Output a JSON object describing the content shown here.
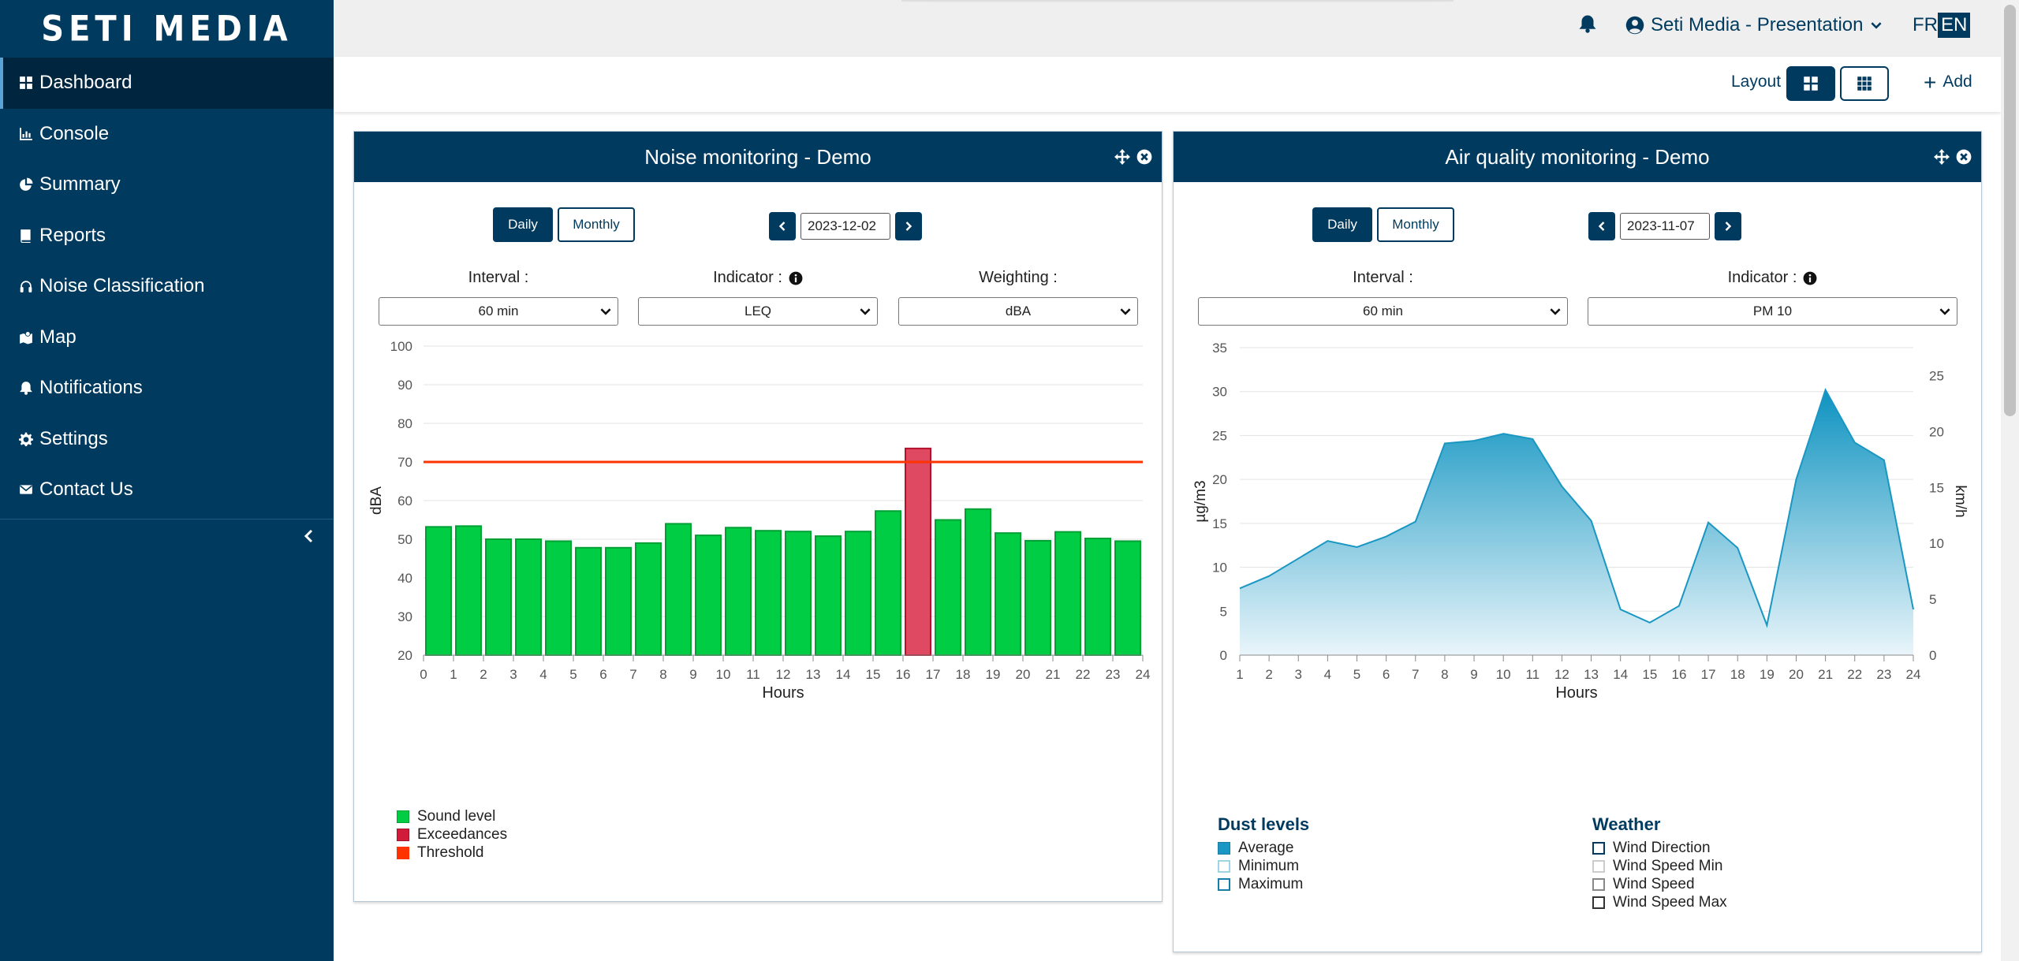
{
  "app": {
    "brand": "SETI MEDIA"
  },
  "sidebar": {
    "items": [
      {
        "label": "Dashboard",
        "icon": "dashboard-icon",
        "active": true
      },
      {
        "label": "Console",
        "icon": "chart-icon"
      },
      {
        "label": "Summary",
        "icon": "pie-icon"
      },
      {
        "label": "Reports",
        "icon": "book-icon"
      },
      {
        "label": "Noise Classification",
        "icon": "headphones-icon"
      },
      {
        "label": "Map",
        "icon": "map-icon"
      },
      {
        "label": "Notifications",
        "icon": "bell-icon"
      },
      {
        "label": "Settings",
        "icon": "gear-icon"
      },
      {
        "label": "Contact Us",
        "icon": "envelope-icon"
      }
    ]
  },
  "header": {
    "user": "Seti Media - Presentation",
    "lang_fr": "FR",
    "lang_en": "EN"
  },
  "toolbar": {
    "layout_label": "Layout",
    "add_label": "Add"
  },
  "noise": {
    "title": "Noise monitoring - Demo",
    "daily": "Daily",
    "monthly": "Monthly",
    "date": "2023-12-02",
    "interval_label": "Interval :",
    "interval_value": "60 min",
    "indicator_label": "Indicator :",
    "indicator_value": "LEQ",
    "weighting_label": "Weighting :",
    "weighting_value": "dBA",
    "legend": {
      "sound": "Sound level",
      "exceed": "Exceedances",
      "threshold": "Threshold"
    }
  },
  "air": {
    "title": "Air quality monitoring - Demo",
    "daily": "Daily",
    "monthly": "Monthly",
    "date": "2023-11-07",
    "interval_label": "Interval :",
    "interval_value": "60 min",
    "indicator_label": "Indicator :",
    "indicator_value": "PM 10",
    "legend": {
      "dust_title": "Dust levels",
      "average": "Average",
      "minimum": "Minimum",
      "maximum": "Maximum",
      "weather_title": "Weather",
      "wind_dir": "Wind Direction",
      "wind_min": "Wind Speed Min",
      "wind_speed": "Wind Speed",
      "wind_max": "Wind Speed Max"
    }
  },
  "colors": {
    "primary": "#003a5e",
    "sound": "#00cc44",
    "exceed": "#d01c3a",
    "threshold": "#ff3300",
    "area": "#1a96c2"
  },
  "chart_data": [
    {
      "type": "bar",
      "categories": [
        "0",
        "1",
        "2",
        "3",
        "4",
        "5",
        "6",
        "7",
        "8",
        "9",
        "10",
        "11",
        "12",
        "13",
        "14",
        "15",
        "16",
        "17",
        "18",
        "19",
        "20",
        "21",
        "22",
        "23"
      ],
      "values": [
        53.2,
        53.4,
        50,
        50,
        49.5,
        47.8,
        47.8,
        49,
        54,
        51,
        53,
        52.2,
        52,
        50.8,
        52,
        57.3,
        73.5,
        55,
        57.8,
        51.6,
        49.6,
        51.9,
        50.2,
        49.5
      ],
      "exceedance_index": [
        16
      ],
      "threshold": 70,
      "x_tick_labels": [
        "0",
        "1",
        "2",
        "3",
        "4",
        "5",
        "6",
        "7",
        "8",
        "9",
        "10",
        "11",
        "12",
        "13",
        "14",
        "15",
        "16",
        "17",
        "18",
        "19",
        "20",
        "21",
        "22",
        "23",
        "24"
      ],
      "xlabel": "Hours",
      "ylabel": "dBA",
      "ylim": [
        20,
        100
      ],
      "yticks": [
        "20",
        "30",
        "40",
        "50",
        "60",
        "70",
        "80",
        "90",
        "100"
      ],
      "grid": true
    },
    {
      "type": "area",
      "x": [
        1,
        2,
        3,
        4,
        5,
        6,
        7,
        8,
        9,
        10,
        11,
        12,
        13,
        14,
        15,
        16,
        17,
        18,
        19,
        20,
        21,
        22,
        23,
        24
      ],
      "x_tick_labels": [
        "1",
        "2",
        "3",
        "4",
        "5",
        "6",
        "7",
        "8",
        "9",
        "10",
        "11",
        "12",
        "13",
        "14",
        "15",
        "16",
        "17",
        "18",
        "19",
        "20",
        "21",
        "22",
        "23",
        "24"
      ],
      "series": [
        {
          "name": "Average",
          "values": [
            7.6,
            9,
            11,
            13,
            12.3,
            13.5,
            15.2,
            24.1,
            24.4,
            25.2,
            24.6,
            19.2,
            15.3,
            5.2,
            3.7,
            5.6,
            15.1,
            12.2,
            3.4,
            20,
            30.2,
            24.2,
            22.2,
            5.2
          ]
        }
      ],
      "xlabel": "Hours",
      "ylabel": "µg/m3",
      "ylim": [
        0,
        35
      ],
      "yticks": [
        "0",
        "5",
        "10",
        "15",
        "20",
        "25",
        "30",
        "35"
      ],
      "y2label": "km/h",
      "y2lim": [
        0,
        27.5
      ],
      "y2ticks": [
        "0",
        "5",
        "10",
        "15",
        "20",
        "25"
      ],
      "grid": true
    }
  ]
}
